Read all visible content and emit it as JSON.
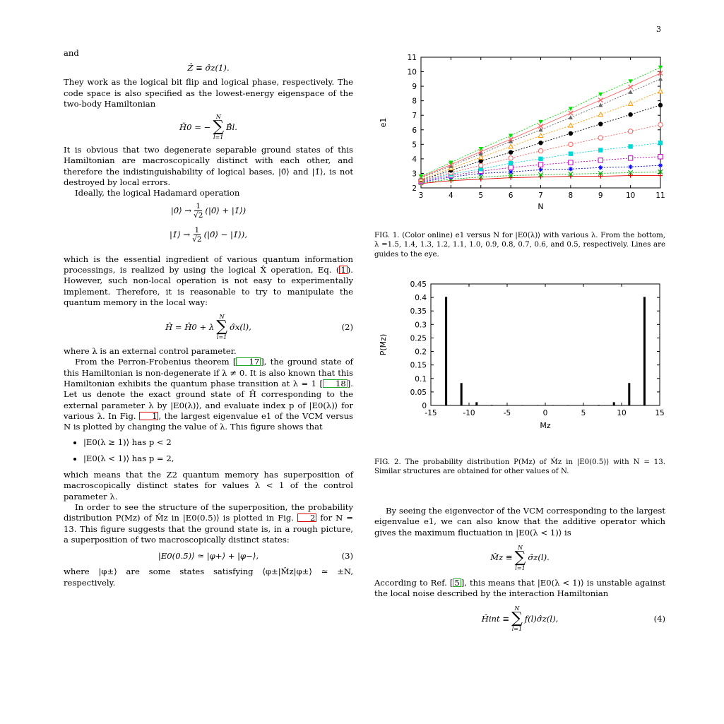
{
  "page_number": "3",
  "left_column": {
    "and": "and",
    "eq_zhat": "Ẑ ≡ σ̂z(1).",
    "p1": "They work as the logical bit flip and logical phase, respectively. The code space is also specified as the lowest-energy eigenspace of the two-body Hamiltonian",
    "eq_h0_lhs": "Ĥ0 = −",
    "eq_h0_rhs": "B̂l.",
    "p2": "It is obvious that two degenerate separable ground states of this Hamiltonian are macroscopically distinct with each other, and therefore the indistinguishability of logical bases, |0̄⟩ and |1̄⟩, is not destroyed by local errors.",
    "p3": "Ideally, the logical Hadamard operation",
    "had1_lhs": "|0̄⟩ →",
    "had1_rhs": "(|0̄⟩ + |1̄⟩)",
    "had2_lhs": "|1̄⟩ →",
    "had2_rhs": "(|0̄⟩ − |1̄⟩),",
    "frac_num": "1",
    "frac_den": "√2",
    "p4a": "which is the essential ingredient of various quantum information processings, is realized by using the logical X̂ operation, Eq. (",
    "p4_cite": "1",
    "p4b": "). However, such non-local operation is not easy to experimentally implement. Therefore, it is reasonable to try to manipulate the quantum memory in the local way:",
    "eq2_lhs": "Ĥ = Ĥ0 + λ",
    "eq2_rhs": "σ̂x(l),",
    "eq2_num": "(2)",
    "p5": "where λ is an external control parameter.",
    "p6a": "From the Perron-Frobenius theorem [",
    "p6_cite1": "17",
    "p6b": "], the ground state of this Hamiltonian is non-degenerate if λ ≠ 0. It is also known that this Hamiltonian exhibits the quantum phase transition at λ = 1 [",
    "p6_cite2": "18",
    "p6c": "]. Let us denote the exact ground state of Ĥ corresponding to the external parameter λ by |E0(λ)⟩, and evaluate index p of |E0(λ)⟩ for various λ. In Fig. ",
    "p6_cite3": "1",
    "p6d": ", the largest eigenvalue e1 of the VCM versus N is plotted by changing the value of λ. This figure shows that",
    "bullet1": "|E0(λ ≥ 1)⟩ has p < 2",
    "bullet2": "|E0(λ < 1)⟩ has p = 2,",
    "p7": "which means that the Z2 quantum memory has superposition of macroscopically distinct states for values λ < 1 of the control parameter λ.",
    "p8a": "In order to see the structure of the superposition, the probability distribution P(Mz) of M̂z in |E0(0.5)⟩ is plotted in Fig. ",
    "p8_cite": "2",
    "p8b": " for N = 13. This figure suggests that the ground state is, in a rough picture, a superposition of two macroscopically distinct states:",
    "eq3": "|E0(0.5)⟩ ≃ |φ+⟩ + |φ−⟩,",
    "eq3_num": "(3)",
    "p9": "where |φ±⟩ are some states satisfying ⟨φ±|M̂z|φ±⟩ ≃ ±N, respectively."
  },
  "sum": {
    "top": "N",
    "bottom": "l=1",
    "symbol": "∑"
  },
  "figure1": {
    "caption": "FIG. 1. (Color online) e1 versus N for |E0(λ)⟩ with various λ. From the bottom, λ =1.5, 1.4, 1.3, 1.2, 1.1, 1.0, 0.9, 0.8, 0.7, 0.6, and 0.5, respectively. Lines are guides to the eye.",
    "chart_data": {
      "type": "line",
      "xlabel": "N",
      "ylabel": "e1",
      "xlim": [
        3,
        11
      ],
      "ylim": [
        2,
        11
      ],
      "x_ticks": [
        "3",
        "4",
        "5",
        "6",
        "7",
        "8",
        "9",
        "10",
        "11"
      ],
      "y_ticks": [
        "2",
        "3",
        "4",
        "5",
        "6",
        "7",
        "8",
        "9",
        "10",
        "11"
      ],
      "grid": false,
      "x": [
        3,
        4,
        5,
        6,
        7,
        8,
        9,
        10,
        11
      ],
      "series": [
        {
          "color": "#e00000",
          "marker": "plus",
          "values": [
            2.3,
            2.5,
            2.6,
            2.7,
            2.75,
            2.8,
            2.8,
            2.85,
            2.85
          ]
        },
        {
          "color": "#00b000",
          "marker": "x",
          "values": [
            2.35,
            2.6,
            2.75,
            2.85,
            2.9,
            2.95,
            3.0,
            3.05,
            3.1
          ]
        },
        {
          "color": "#0000ff",
          "marker": "star",
          "values": [
            2.4,
            2.75,
            3.0,
            3.1,
            3.25,
            3.3,
            3.4,
            3.45,
            3.55
          ]
        },
        {
          "color": "#c000c0",
          "marker": "open-square",
          "values": [
            2.45,
            2.85,
            3.15,
            3.4,
            3.6,
            3.75,
            3.9,
            4.05,
            4.15
          ]
        },
        {
          "color": "#00d8d8",
          "marker": "filled-square",
          "values": [
            2.5,
            2.95,
            3.3,
            3.7,
            4.0,
            4.35,
            4.6,
            4.85,
            5.1
          ]
        },
        {
          "color": "#ff6060",
          "marker": "open-circle",
          "values": [
            2.5,
            3.05,
            3.55,
            4.05,
            4.55,
            5.0,
            5.45,
            5.9,
            6.35
          ]
        },
        {
          "color": "#000000",
          "marker": "filled-circle",
          "values": [
            2.55,
            3.2,
            3.85,
            4.45,
            5.1,
            5.75,
            6.4,
            7.05,
            7.7
          ]
        },
        {
          "color": "#ff9900",
          "marker": "open-triangle",
          "values": [
            2.6,
            3.35,
            4.1,
            4.85,
            5.6,
            6.3,
            7.05,
            7.8,
            8.65
          ]
        },
        {
          "color": "#666666",
          "marker": "filled-triangle",
          "values": [
            2.7,
            3.5,
            4.35,
            5.2,
            6.0,
            6.85,
            7.7,
            8.6,
            9.5
          ]
        },
        {
          "color": "#ff6060",
          "marker": "x",
          "values": [
            2.75,
            3.6,
            4.5,
            5.35,
            6.25,
            7.15,
            8.05,
            8.95,
            9.9
          ]
        },
        {
          "color": "#00e000",
          "marker": "filled-down-triangle",
          "values": [
            2.8,
            3.75,
            4.7,
            5.6,
            6.55,
            7.45,
            8.45,
            9.35,
            10.3
          ]
        }
      ]
    }
  },
  "figure2": {
    "caption": "FIG. 2. The probability distribution P(Mz) of M̂z in |E0(0.5)⟩ with N = 13. Similar structures are obtained for other values of N.",
    "chart_data": {
      "type": "bar",
      "xlabel": "Mz",
      "ylabel": "P(Mz)",
      "xlim": [
        -15,
        15
      ],
      "ylim": [
        0,
        0.45
      ],
      "x_ticks": [
        "-15",
        "-10",
        "-5",
        "0",
        "5",
        "10",
        "15"
      ],
      "y_ticks": [
        "0",
        "0.05",
        "0.1",
        "0.15",
        "0.2",
        "0.25",
        "0.3",
        "0.35",
        "0.4",
        "0.45"
      ],
      "x": [
        -13,
        -11,
        -9,
        -7,
        -5,
        -3,
        -1,
        1,
        3,
        5,
        7,
        9,
        11,
        13
      ],
      "values": [
        0.402,
        0.083,
        0.012,
        0.002,
        0.0005,
        0.0002,
        0.0001,
        0.0001,
        0.0002,
        0.0005,
        0.002,
        0.012,
        0.083,
        0.402
      ]
    }
  },
  "right_column": {
    "p1": "By seeing the eigenvector of the VCM corresponding to the largest eigenvalue e1, we can also know that the additive operator which gives the maximum fluctuation in |E0(λ < 1)⟩ is",
    "eq_mz_lhs": "M̂z ≡",
    "eq_mz_rhs": "σ̂z(l).",
    "p2a": "According to Ref. [",
    "p2_cite": "5",
    "p2b": "], this means that |E0(λ < 1)⟩ is unstable against the local noise described by the interaction Hamiltonian",
    "eq4_lhs": "Ĥint ≡",
    "eq4_rhs": "f(l)σ̂z(l),",
    "eq4_num": "(4)"
  }
}
